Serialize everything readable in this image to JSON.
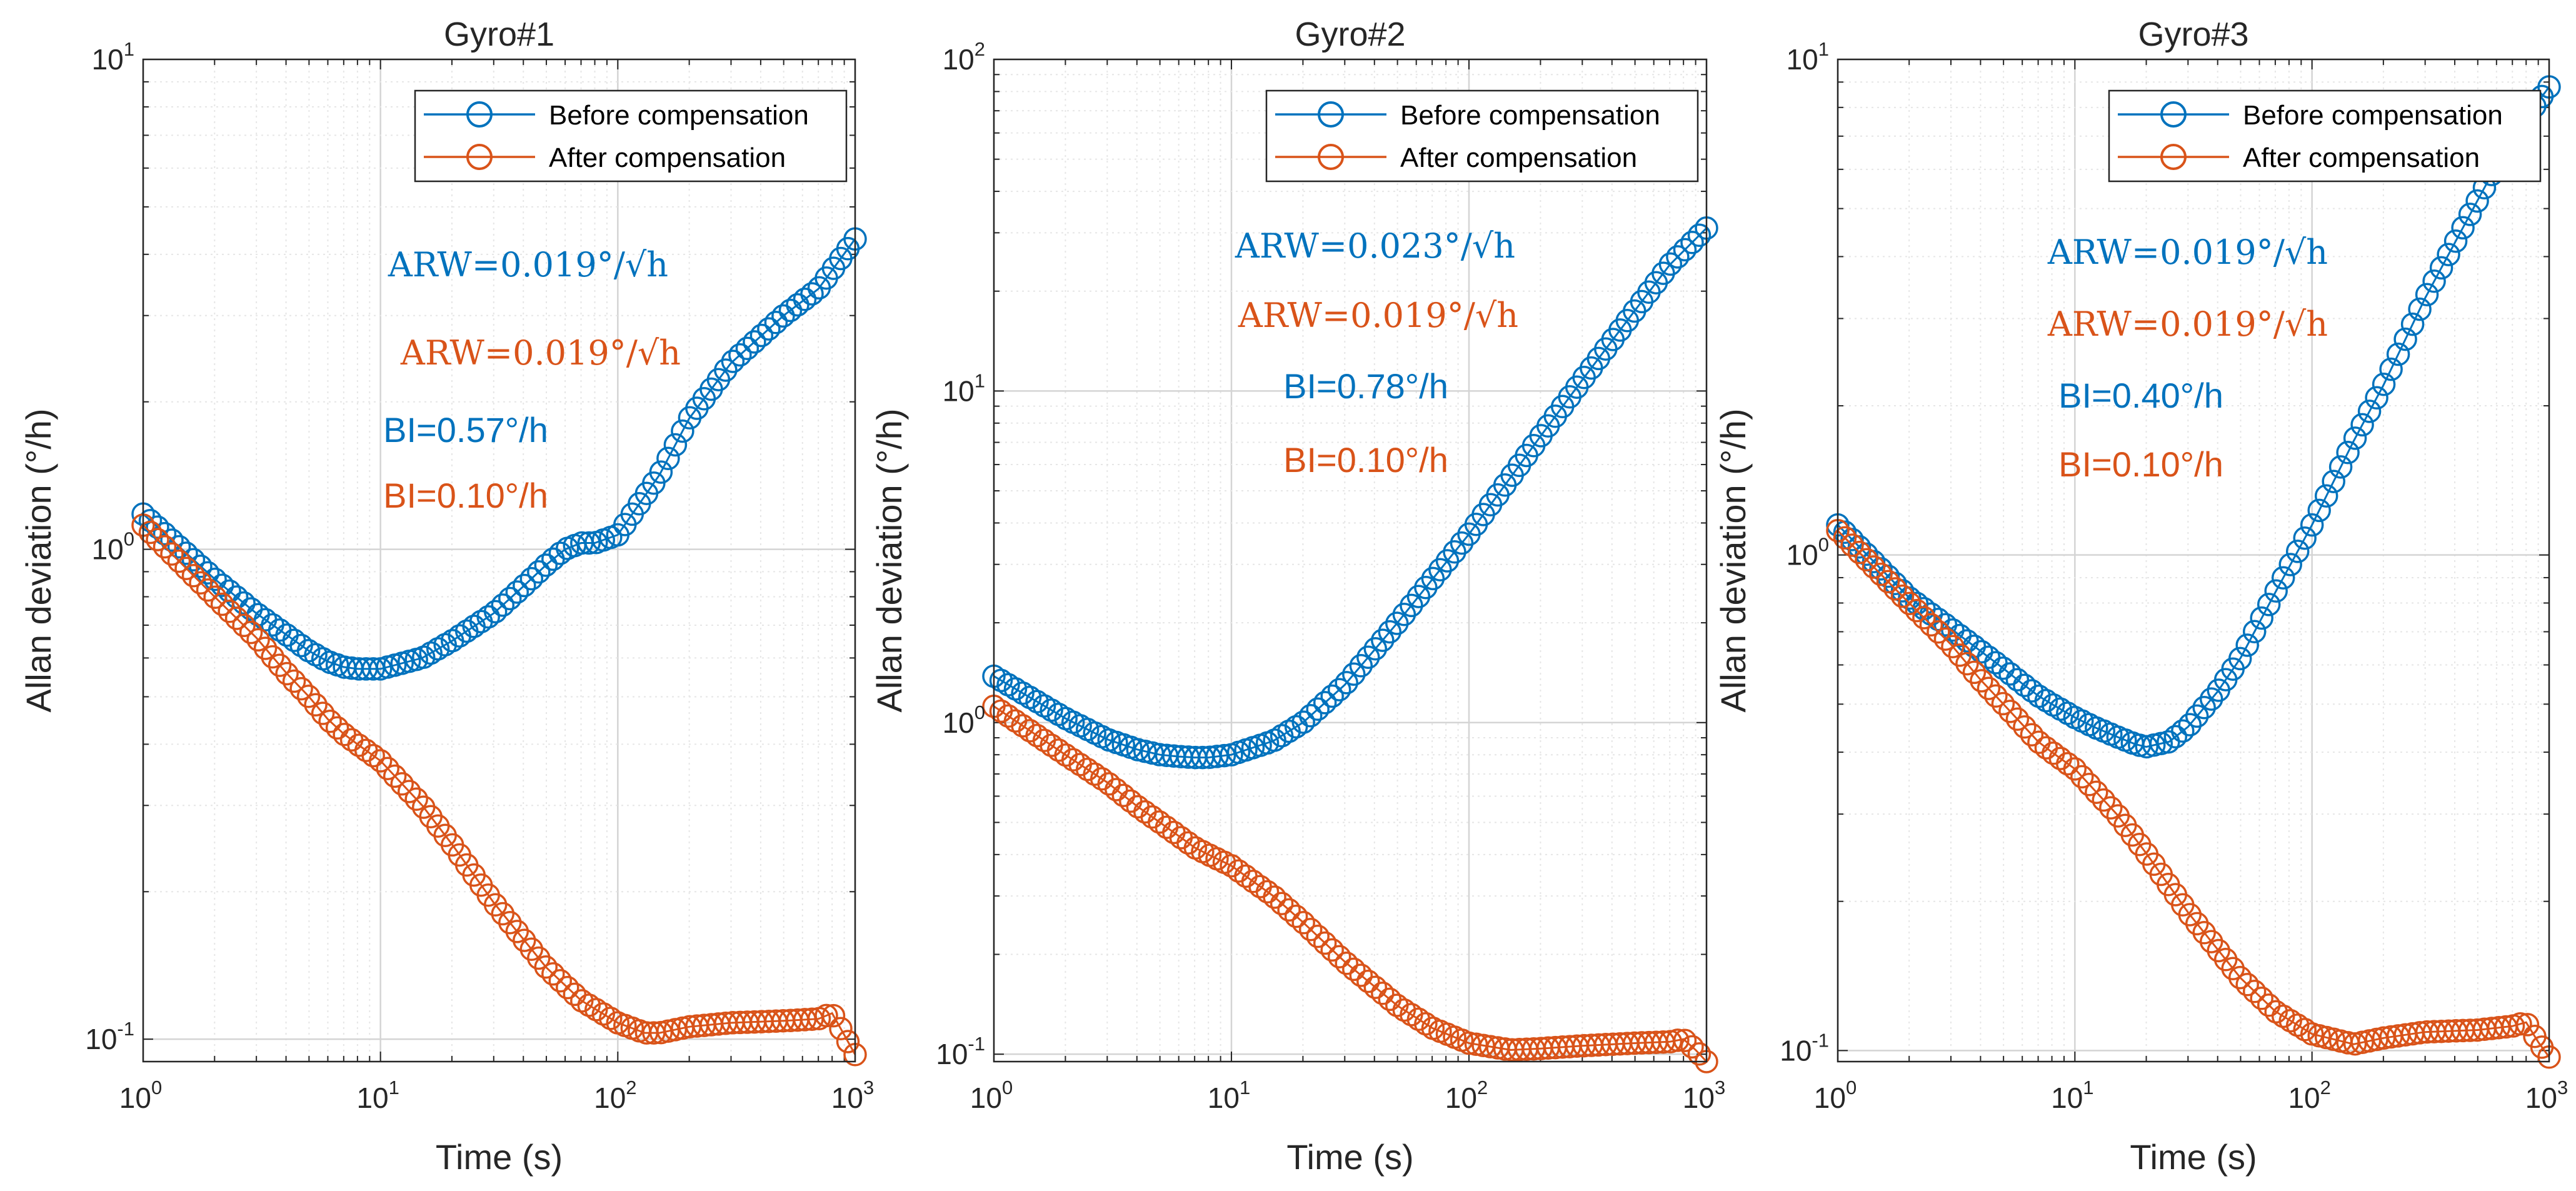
{
  "chart_data": [
    {
      "type": "line",
      "title": "Gyro#1",
      "xlabel": "Time (s)",
      "ylabel": "Allan deviation (°/h)",
      "xscale": "log",
      "yscale": "log",
      "xlim": [
        1,
        1000
      ],
      "ylim": [
        0.09,
        10
      ],
      "xticks": [
        {
          "base": "10",
          "exp": "0"
        },
        {
          "base": "10",
          "exp": "1"
        },
        {
          "base": "10",
          "exp": "2"
        },
        {
          "base": "10",
          "exp": "3"
        }
      ],
      "yticks": [
        {
          "value": 0.1,
          "base": "10",
          "exp": "-1"
        },
        {
          "value": 1,
          "base": "10",
          "exp": "0"
        },
        {
          "value": 10,
          "base": "10",
          "exp": "1"
        }
      ],
      "grid": true,
      "legend": {
        "position": "top-right",
        "entries": [
          "Before compensation",
          "After compensation"
        ]
      },
      "annotations": [
        {
          "id": "arw_before",
          "text": "ARW=0.019°/√h",
          "color": "#0072BD",
          "style": "serif"
        },
        {
          "id": "arw_after",
          "text": "ARW=0.019°/√h",
          "color": "#D95319",
          "style": "serif"
        },
        {
          "id": "bi_before",
          "text": "BI=0.57°/h",
          "color": "#0072BD",
          "style": "sans"
        },
        {
          "id": "bi_after",
          "text": "BI=0.10°/h",
          "color": "#D95319",
          "style": "sans"
        }
      ],
      "series": [
        {
          "name": "Before compensation",
          "color": "#0072BD",
          "x": [
            1,
            2,
            3,
            4,
            5,
            6,
            7,
            8,
            10,
            15,
            20,
            30,
            40,
            50,
            60,
            70,
            80,
            100,
            150,
            200,
            300,
            500,
            700,
            1000
          ],
          "y": [
            1.18,
            0.87,
            0.74,
            0.67,
            0.62,
            0.59,
            0.575,
            0.57,
            0.57,
            0.6,
            0.65,
            0.74,
            0.84,
            0.93,
            1.0,
            1.03,
            1.03,
            1.07,
            1.42,
            1.85,
            2.4,
            3.0,
            3.4,
            4.3
          ]
        },
        {
          "name": "After compensation",
          "color": "#D95319",
          "x": [
            1,
            2,
            3,
            4,
            5,
            6,
            7,
            8,
            10,
            15,
            20,
            30,
            40,
            50,
            70,
            100,
            130,
            150,
            200,
            300,
            500,
            700,
            800,
            900,
            1000
          ],
          "y": [
            1.12,
            0.8,
            0.66,
            0.56,
            0.5,
            0.45,
            0.42,
            0.4,
            0.37,
            0.3,
            0.25,
            0.19,
            0.16,
            0.14,
            0.12,
            0.108,
            0.103,
            0.103,
            0.106,
            0.108,
            0.109,
            0.11,
            0.113,
            0.102,
            0.093
          ]
        }
      ]
    },
    {
      "type": "line",
      "title": "Gyro#2",
      "xlabel": "Time (s)",
      "ylabel": "Allan deviation (°/h)",
      "xscale": "log",
      "yscale": "log",
      "xlim": [
        1,
        1000
      ],
      "ylim": [
        0.095,
        100
      ],
      "xticks": [
        {
          "base": "10",
          "exp": "0"
        },
        {
          "base": "10",
          "exp": "1"
        },
        {
          "base": "10",
          "exp": "2"
        },
        {
          "base": "10",
          "exp": "3"
        }
      ],
      "yticks": [
        {
          "value": 0.1,
          "base": "10",
          "exp": "-1"
        },
        {
          "value": 1,
          "base": "10",
          "exp": "0"
        },
        {
          "value": 10,
          "base": "10",
          "exp": "1"
        },
        {
          "value": 100,
          "base": "10",
          "exp": "2"
        }
      ],
      "grid": true,
      "legend": {
        "position": "top-right",
        "entries": [
          "Before compensation",
          "After compensation"
        ]
      },
      "annotations": [
        {
          "id": "arw_before",
          "text": "ARW=0.023°/√h",
          "color": "#0072BD",
          "style": "serif"
        },
        {
          "id": "arw_after",
          "text": "ARW=0.019°/√h",
          "color": "#D95319",
          "style": "serif"
        },
        {
          "id": "bi_before",
          "text": "BI=0.78°/h",
          "color": "#0072BD",
          "style": "sans"
        },
        {
          "id": "bi_after",
          "text": "BI=0.10°/h",
          "color": "#D95319",
          "style": "sans"
        }
      ],
      "series": [
        {
          "name": "Before compensation",
          "color": "#0072BD",
          "x": [
            1,
            2,
            3,
            4,
            5,
            6,
            7,
            8,
            10,
            15,
            20,
            30,
            50,
            70,
            100,
            150,
            200,
            300,
            500,
            700,
            1000
          ],
          "y": [
            1.38,
            1.03,
            0.89,
            0.83,
            0.8,
            0.79,
            0.785,
            0.785,
            0.8,
            0.88,
            1.0,
            1.3,
            2.0,
            2.7,
            3.7,
            5.5,
            7.3,
            10.8,
            17.5,
            24,
            31
          ]
        },
        {
          "name": "After compensation",
          "color": "#D95319",
          "x": [
            1,
            2,
            3,
            4,
            5,
            6,
            7,
            8,
            10,
            15,
            20,
            30,
            50,
            70,
            100,
            150,
            200,
            300,
            500,
            700,
            800,
            900,
            1000
          ],
          "y": [
            1.12,
            0.8,
            0.66,
            0.56,
            0.5,
            0.455,
            0.42,
            0.4,
            0.37,
            0.3,
            0.25,
            0.19,
            0.14,
            0.12,
            0.108,
            0.103,
            0.104,
            0.106,
            0.108,
            0.109,
            0.111,
            0.103,
            0.095
          ]
        }
      ]
    },
    {
      "type": "line",
      "title": "Gyro#3",
      "xlabel": "Time (s)",
      "ylabel": "Allan deviation (°/h)",
      "xscale": "log",
      "yscale": "log",
      "xlim": [
        1,
        1000
      ],
      "ylim": [
        0.095,
        10
      ],
      "xticks": [
        {
          "base": "10",
          "exp": "0"
        },
        {
          "base": "10",
          "exp": "1"
        },
        {
          "base": "10",
          "exp": "2"
        },
        {
          "base": "10",
          "exp": "3"
        }
      ],
      "yticks": [
        {
          "value": 0.1,
          "base": "10",
          "exp": "-1"
        },
        {
          "value": 1,
          "base": "10",
          "exp": "0"
        },
        {
          "value": 10,
          "base": "10",
          "exp": "1"
        }
      ],
      "grid": true,
      "legend": {
        "position": "top-right",
        "entries": [
          "Before compensation",
          "After compensation"
        ]
      },
      "annotations": [
        {
          "id": "arw_before",
          "text": "ARW=0.019°/√h",
          "color": "#0072BD",
          "style": "serif"
        },
        {
          "id": "arw_after",
          "text": "ARW=0.019°/√h",
          "color": "#D95319",
          "style": "serif"
        },
        {
          "id": "bi_before",
          "text": "BI=0.40°/h",
          "color": "#0072BD",
          "style": "sans"
        },
        {
          "id": "bi_after",
          "text": "BI=0.10°/h",
          "color": "#D95319",
          "style": "sans"
        }
      ],
      "series": [
        {
          "name": "Before compensation",
          "color": "#0072BD",
          "x": [
            1,
            2,
            3,
            4,
            5,
            6,
            7,
            8,
            10,
            12,
            15,
            18,
            20,
            25,
            30,
            40,
            50,
            70,
            100,
            150,
            200,
            300,
            500,
            700,
            1000
          ],
          "y": [
            1.15,
            0.82,
            0.71,
            0.64,
            0.59,
            0.55,
            0.52,
            0.5,
            0.47,
            0.45,
            0.43,
            0.415,
            0.41,
            0.42,
            0.45,
            0.53,
            0.62,
            0.84,
            1.15,
            1.7,
            2.2,
            3.3,
            5.2,
            7.0,
            8.8
          ]
        },
        {
          "name": "After compensation",
          "color": "#D95319",
          "x": [
            1,
            2,
            3,
            4,
            5,
            6,
            7,
            8,
            10,
            15,
            20,
            30,
            50,
            70,
            100,
            150,
            200,
            300,
            500,
            700,
            800,
            900,
            1000
          ],
          "y": [
            1.12,
            0.8,
            0.66,
            0.56,
            0.5,
            0.455,
            0.42,
            0.4,
            0.37,
            0.3,
            0.25,
            0.19,
            0.14,
            0.12,
            0.108,
            0.103,
            0.106,
            0.109,
            0.11,
            0.112,
            0.114,
            0.104,
            0.097
          ]
        }
      ]
    }
  ]
}
